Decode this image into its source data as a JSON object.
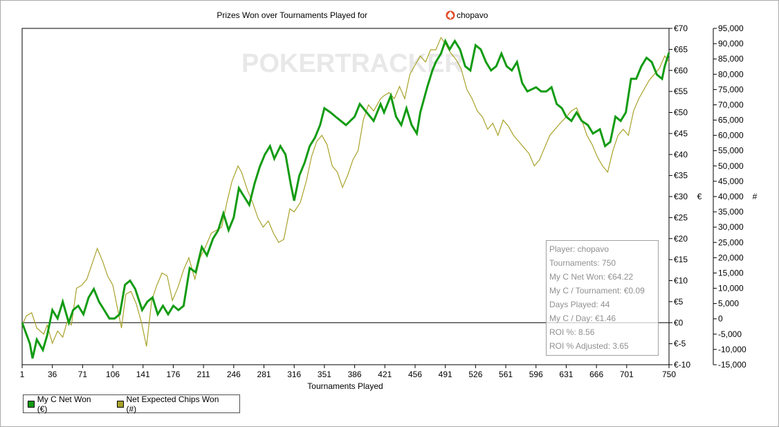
{
  "chart_data": {
    "type": "line",
    "title": "Prizes Won over Tournaments Played for",
    "player": "chopavo",
    "watermark": "POKERTRACKER",
    "xlabel": "Tournaments Played",
    "ylabel_left": "€",
    "ylabel_right": "#",
    "xlim": [
      1,
      750
    ],
    "ylim_left": [
      -10,
      70
    ],
    "ylim_right": [
      -15000,
      95000
    ],
    "x_ticks": [
      1,
      36,
      71,
      106,
      141,
      176,
      211,
      246,
      281,
      316,
      351,
      386,
      421,
      456,
      491,
      526,
      561,
      596,
      631,
      666,
      701,
      750
    ],
    "y_left_ticks": [
      "€70",
      "€65",
      "€60",
      "€55",
      "€50",
      "€45",
      "€40",
      "€35",
      "€30",
      "€25",
      "€20",
      "€15",
      "€10",
      "€5",
      "€0",
      "€-5",
      "€-10"
    ],
    "y_right_ticks": [
      "95,000",
      "90,000",
      "85,000",
      "80,000",
      "75,000",
      "70,000",
      "65,000",
      "60,000",
      "55,000",
      "50,000",
      "45,000",
      "40,000",
      "35,000",
      "30,000",
      "25,000",
      "20,000",
      "15,000",
      "10,000",
      "5,000",
      "0",
      "-5,000",
      "-10,000",
      "-15,000"
    ],
    "series": [
      {
        "name": "My C Net Won (€)",
        "color": "#129b12",
        "axis": "left",
        "points": [
          [
            1,
            0
          ],
          [
            10,
            -5
          ],
          [
            13,
            -8.5
          ],
          [
            18,
            -4
          ],
          [
            25,
            -6.5
          ],
          [
            30,
            -3
          ],
          [
            36,
            3
          ],
          [
            42,
            1
          ],
          [
            48,
            5
          ],
          [
            55,
            0
          ],
          [
            60,
            3
          ],
          [
            66,
            4
          ],
          [
            72,
            2
          ],
          [
            78,
            6
          ],
          [
            84,
            8
          ],
          [
            90,
            5
          ],
          [
            96,
            3
          ],
          [
            102,
            1
          ],
          [
            108,
            1
          ],
          [
            114,
            2
          ],
          [
            120,
            9
          ],
          [
            126,
            10
          ],
          [
            132,
            8
          ],
          [
            140,
            3
          ],
          [
            146,
            5
          ],
          [
            152,
            6
          ],
          [
            158,
            2
          ],
          [
            164,
            4
          ],
          [
            170,
            2
          ],
          [
            176,
            4
          ],
          [
            182,
            3
          ],
          [
            188,
            4
          ],
          [
            195,
            13
          ],
          [
            202,
            12
          ],
          [
            209,
            18
          ],
          [
            215,
            16
          ],
          [
            222,
            20
          ],
          [
            228,
            22
          ],
          [
            234,
            26
          ],
          [
            240,
            22
          ],
          [
            246,
            25
          ],
          [
            252,
            32
          ],
          [
            258,
            30
          ],
          [
            264,
            28
          ],
          [
            270,
            33
          ],
          [
            276,
            37
          ],
          [
            282,
            40
          ],
          [
            288,
            42
          ],
          [
            293,
            39
          ],
          [
            300,
            42
          ],
          [
            306,
            40
          ],
          [
            312,
            33
          ],
          [
            316,
            29
          ],
          [
            322,
            35
          ],
          [
            328,
            38
          ],
          [
            334,
            42
          ],
          [
            340,
            44
          ],
          [
            346,
            47
          ],
          [
            351,
            51
          ],
          [
            358,
            50
          ],
          [
            364,
            49
          ],
          [
            370,
            48
          ],
          [
            376,
            47
          ],
          [
            386,
            49
          ],
          [
            392,
            52
          ],
          [
            400,
            50
          ],
          [
            408,
            48
          ],
          [
            416,
            52
          ],
          [
            420,
            50
          ],
          [
            428,
            54
          ],
          [
            434,
            49
          ],
          [
            440,
            47
          ],
          [
            446,
            51
          ],
          [
            452,
            47
          ],
          [
            458,
            45
          ],
          [
            462,
            50
          ],
          [
            470,
            56
          ],
          [
            476,
            60
          ],
          [
            480,
            62
          ],
          [
            486,
            64
          ],
          [
            491,
            67
          ],
          [
            496,
            65
          ],
          [
            502,
            67
          ],
          [
            508,
            65
          ],
          [
            514,
            61
          ],
          [
            520,
            60
          ],
          [
            526,
            66
          ],
          [
            532,
            65
          ],
          [
            538,
            62
          ],
          [
            544,
            60
          ],
          [
            550,
            61
          ],
          [
            556,
            64
          ],
          [
            562,
            61
          ],
          [
            568,
            60
          ],
          [
            574,
            62
          ],
          [
            580,
            57
          ],
          [
            586,
            55
          ],
          [
            596,
            56
          ],
          [
            602,
            55
          ],
          [
            608,
            55
          ],
          [
            614,
            56
          ],
          [
            620,
            52
          ],
          [
            626,
            51
          ],
          [
            631,
            49
          ],
          [
            637,
            48
          ],
          [
            643,
            50
          ],
          [
            649,
            48
          ],
          [
            656,
            47
          ],
          [
            662,
            45
          ],
          [
            670,
            46
          ],
          [
            676,
            42
          ],
          [
            682,
            43
          ],
          [
            688,
            49
          ],
          [
            694,
            48
          ],
          [
            700,
            50
          ],
          [
            706,
            58
          ],
          [
            712,
            58
          ],
          [
            718,
            61
          ],
          [
            724,
            63
          ],
          [
            730,
            62
          ],
          [
            736,
            59
          ],
          [
            742,
            58
          ],
          [
            745,
            61
          ],
          [
            750,
            64.22
          ]
        ]
      },
      {
        "name": "Net Expected Chips Won (#)",
        "color": "#a8a22a",
        "axis": "right",
        "points": [
          [
            1,
            -2000
          ],
          [
            6,
            1000
          ],
          [
            12,
            2000
          ],
          [
            18,
            -3000
          ],
          [
            26,
            -5000
          ],
          [
            30,
            -2000
          ],
          [
            36,
            -8000
          ],
          [
            42,
            -4000
          ],
          [
            48,
            -6000
          ],
          [
            53,
            -1000
          ],
          [
            58,
            -2000
          ],
          [
            64,
            10000
          ],
          [
            70,
            11000
          ],
          [
            76,
            13000
          ],
          [
            82,
            18000
          ],
          [
            88,
            23000
          ],
          [
            94,
            19000
          ],
          [
            100,
            14000
          ],
          [
            106,
            11000
          ],
          [
            111,
            4000
          ],
          [
            116,
            -3000
          ],
          [
            121,
            8000
          ],
          [
            127,
            9000
          ],
          [
            133,
            5000
          ],
          [
            139,
            -1000
          ],
          [
            145,
            -9000
          ],
          [
            151,
            6000
          ],
          [
            157,
            11000
          ],
          [
            163,
            15000
          ],
          [
            169,
            14000
          ],
          [
            175,
            6000
          ],
          [
            181,
            10000
          ],
          [
            188,
            16000
          ],
          [
            194,
            20000
          ],
          [
            201,
            13000
          ],
          [
            207,
            20000
          ],
          [
            214,
            24000
          ],
          [
            220,
            28000
          ],
          [
            226,
            29000
          ],
          [
            232,
            30000
          ],
          [
            238,
            38000
          ],
          [
            244,
            45000
          ],
          [
            251,
            50000
          ],
          [
            255,
            48000
          ],
          [
            262,
            42000
          ],
          [
            268,
            38000
          ],
          [
            274,
            33000
          ],
          [
            280,
            30000
          ],
          [
            286,
            32000
          ],
          [
            292,
            28000
          ],
          [
            298,
            25000
          ],
          [
            304,
            26000
          ],
          [
            311,
            36000
          ],
          [
            316,
            35000
          ],
          [
            323,
            38000
          ],
          [
            330,
            45000
          ],
          [
            336,
            53000
          ],
          [
            342,
            58000
          ],
          [
            348,
            60000
          ],
          [
            354,
            57000
          ],
          [
            360,
            50000
          ],
          [
            366,
            48000
          ],
          [
            372,
            43000
          ],
          [
            378,
            47000
          ],
          [
            384,
            52000
          ],
          [
            390,
            55000
          ],
          [
            396,
            65000
          ],
          [
            402,
            70000
          ],
          [
            408,
            68000
          ],
          [
            416,
            72000
          ],
          [
            420,
            73000
          ],
          [
            426,
            74000
          ],
          [
            432,
            72000
          ],
          [
            438,
            76000
          ],
          [
            444,
            72000
          ],
          [
            450,
            80000
          ],
          [
            456,
            83000
          ],
          [
            462,
            86000
          ],
          [
            468,
            84000
          ],
          [
            474,
            88000
          ],
          [
            480,
            88000
          ],
          [
            486,
            92000
          ],
          [
            491,
            90000
          ],
          [
            497,
            87000
          ],
          [
            503,
            85000
          ],
          [
            509,
            82000
          ],
          [
            516,
            75000
          ],
          [
            522,
            72000
          ],
          [
            528,
            68000
          ],
          [
            534,
            66000
          ],
          [
            540,
            62000
          ],
          [
            546,
            64000
          ],
          [
            552,
            60000
          ],
          [
            558,
            65000
          ],
          [
            564,
            63000
          ],
          [
            570,
            60000
          ],
          [
            576,
            58000
          ],
          [
            582,
            56000
          ],
          [
            588,
            54000
          ],
          [
            594,
            50000
          ],
          [
            600,
            52000
          ],
          [
            606,
            56000
          ],
          [
            612,
            60000
          ],
          [
            618,
            62000
          ],
          [
            624,
            64000
          ],
          [
            631,
            66000
          ],
          [
            637,
            68000
          ],
          [
            643,
            69000
          ],
          [
            649,
            65000
          ],
          [
            655,
            60000
          ],
          [
            661,
            57000
          ],
          [
            667,
            53000
          ],
          [
            673,
            50000
          ],
          [
            679,
            48000
          ],
          [
            685,
            55000
          ],
          [
            691,
            60000
          ],
          [
            697,
            62000
          ],
          [
            703,
            60000
          ],
          [
            709,
            68000
          ],
          [
            715,
            72000
          ],
          [
            721,
            75000
          ],
          [
            727,
            78000
          ],
          [
            733,
            80000
          ],
          [
            739,
            82000
          ],
          [
            745,
            86000
          ],
          [
            750,
            84000
          ]
        ]
      }
    ],
    "zero_line": 0
  },
  "info_box": {
    "lines": [
      "Player: chopavo",
      "Tournaments: 750",
      "My C Net Won: €64.22",
      "My C / Tournament: €0.09",
      "Days Played: 44",
      "My C / Day: €1.46",
      "ROI %: 8.56",
      "ROI % Adjusted: 3.65"
    ]
  },
  "legend": {
    "items": [
      {
        "label": "My C Net Won (€)",
        "color": "#129b12"
      },
      {
        "label": "Net Expected Chips Won (#)",
        "color": "#a8a22a"
      }
    ]
  }
}
